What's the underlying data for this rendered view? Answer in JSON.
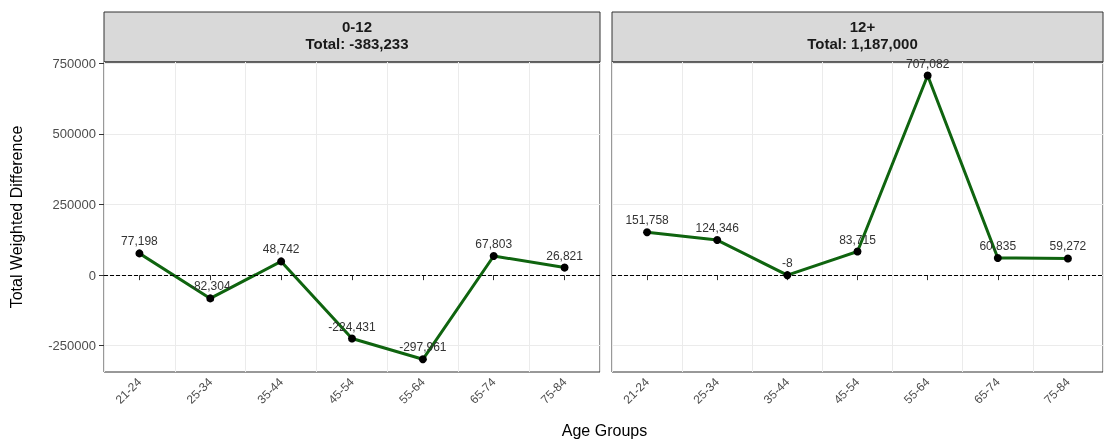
{
  "chart_data": [
    {
      "type": "line",
      "title": "0-12",
      "subtitle": "Total: -383,233",
      "ylabel": "Total Weighted Difference",
      "xlabel": "Age Groups",
      "categories": [
        "21-24",
        "25-34",
        "35-44",
        "45-54",
        "55-64",
        "65-74",
        "75-84"
      ],
      "series": [
        {
          "color": "#0f640f",
          "values": [
            77198,
            -82304,
            48742,
            -224431,
            -297961,
            67803,
            26821
          ],
          "value_labels": [
            "77,198",
            "-82,304",
            "48,742",
            "-224,431",
            "-297,961",
            "67,803",
            "26,821"
          ]
        }
      ],
      "ylim": [
        -343000,
        755000
      ],
      "yticks": [
        -250000,
        0,
        250000,
        500000,
        750000
      ],
      "grid": true,
      "marker": "circle",
      "line_style": "solid",
      "ref_lines": [
        {
          "axis": "y",
          "value": 0,
          "line_style": "dashed",
          "color": "#000000"
        }
      ]
    },
    {
      "type": "line",
      "title": "12+",
      "subtitle": "Total: 1,187,000",
      "categories": [
        "21-24",
        "25-34",
        "35-44",
        "45-54",
        "55-64",
        "65-74",
        "75-84"
      ],
      "series": [
        {
          "color": "#0f640f",
          "values": [
            151758,
            124346,
            -8,
            83715,
            707082,
            60835,
            59272
          ],
          "value_labels": [
            "151,758",
            "124,346",
            "-8",
            "83,715",
            "707,082",
            "60,835",
            "59,272"
          ]
        }
      ],
      "ylim": [
        -343000,
        755000
      ],
      "yticks": [
        -250000,
        0,
        250000,
        500000,
        750000
      ],
      "grid": true,
      "marker": "circle",
      "line_style": "solid",
      "tick_labels": "x",
      "ref_lines": [
        {
          "axis": "y",
          "value": 0,
          "line_style": "dashed",
          "color": "#000000"
        }
      ]
    }
  ]
}
